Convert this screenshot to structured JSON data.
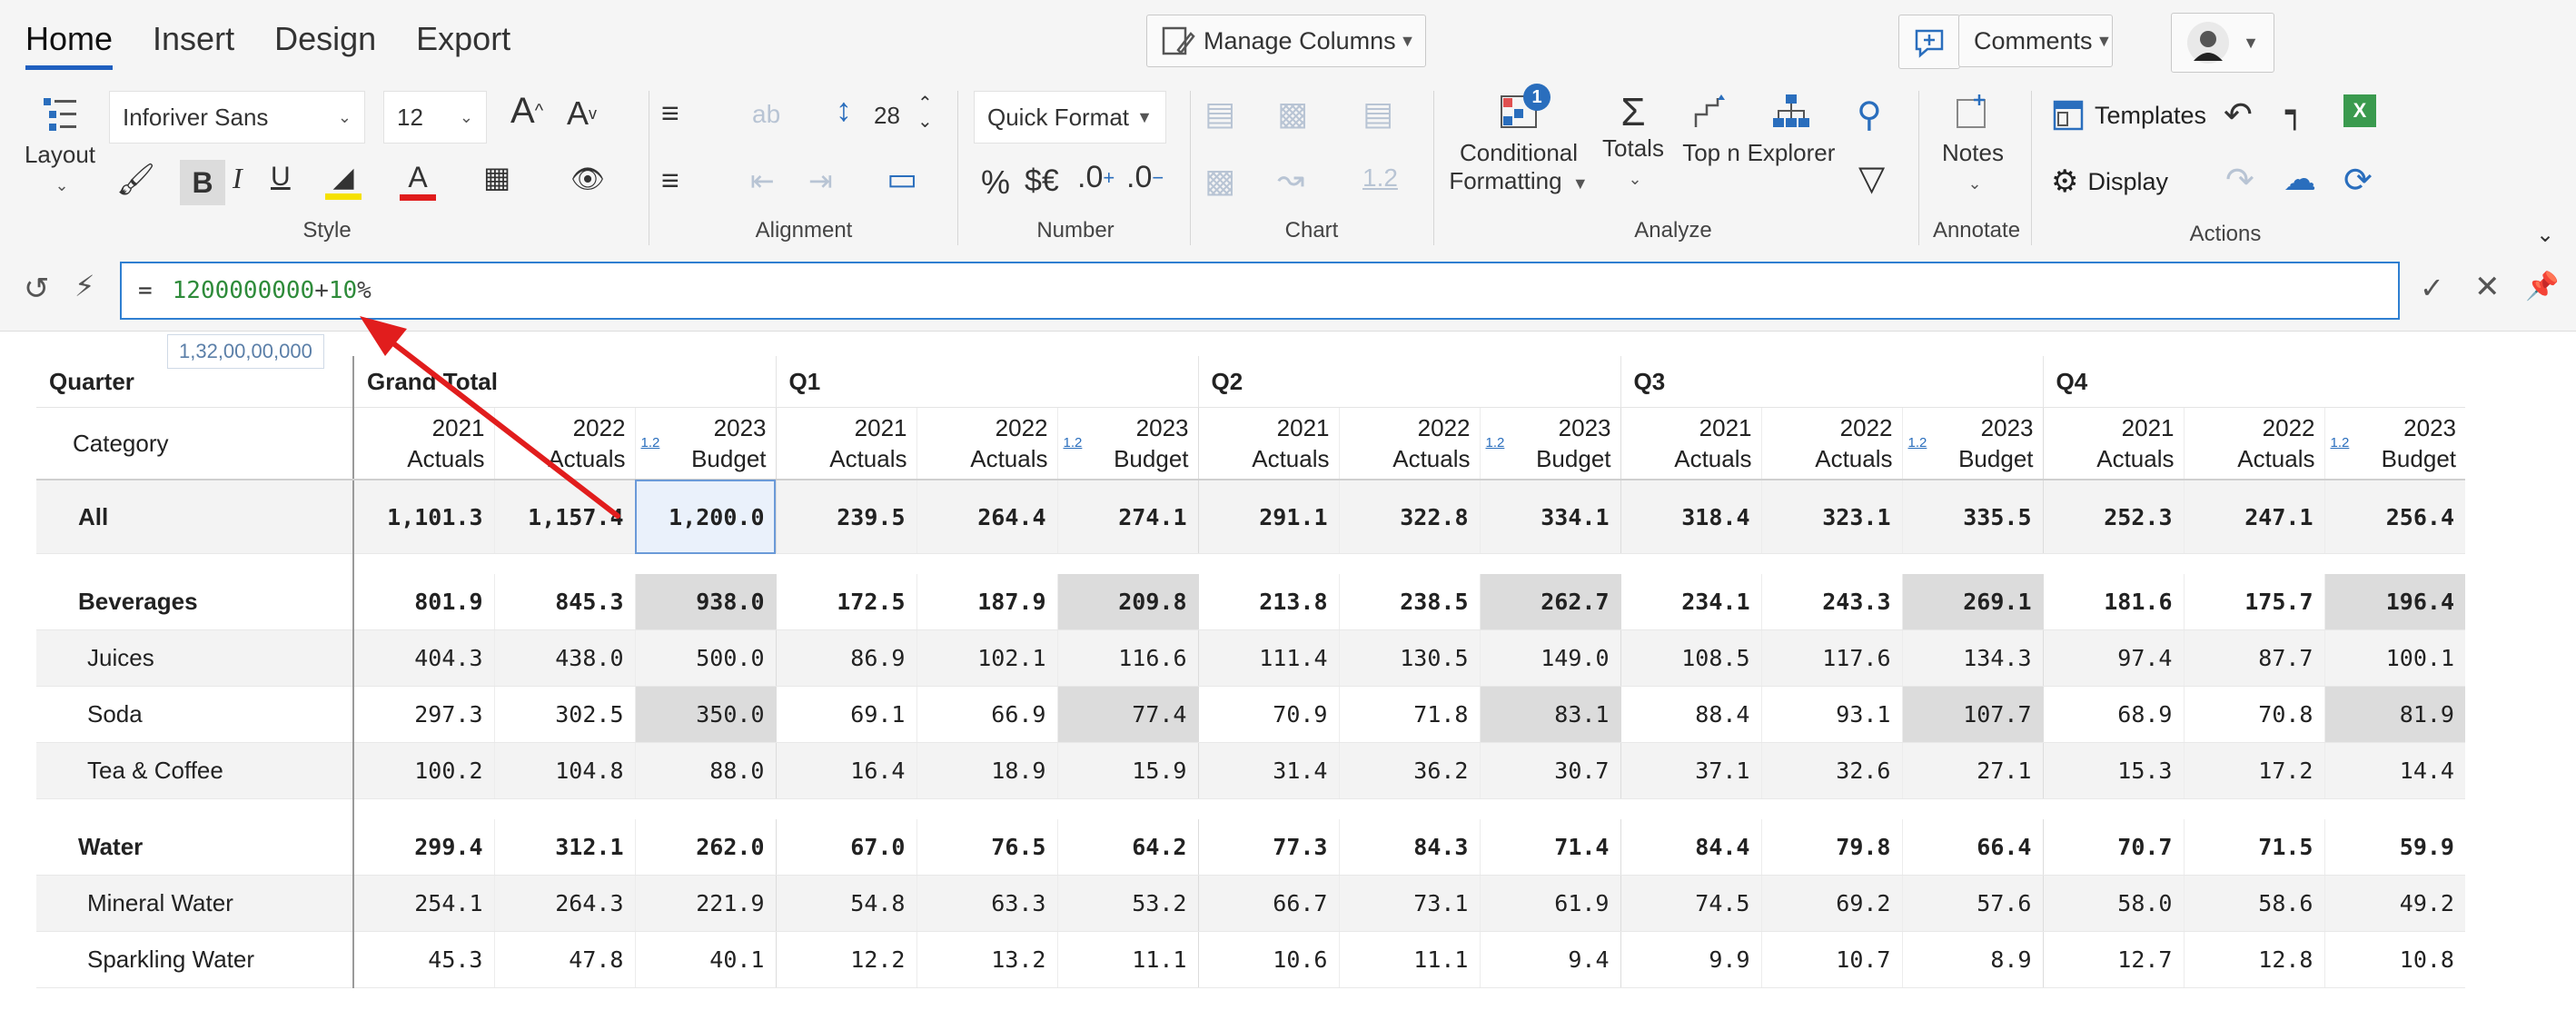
{
  "tabs": [
    "Home",
    "Insert",
    "Design",
    "Export"
  ],
  "top": {
    "manage_columns": "Manage Columns",
    "comments": "Comments"
  },
  "ribbon": {
    "layout_label": "Layout",
    "font_name": "Inforiver Sans",
    "font_size": "12",
    "row_height": "28",
    "quick_format": "Quick Format",
    "conditional_formatting": [
      "Conditional",
      "Formatting"
    ],
    "totals": "Totals",
    "topn": "Top n",
    "explorer": "Explorer",
    "notes": "Notes",
    "templates": "Templates",
    "display": "Display",
    "badge": "1",
    "chart_value_label": "1.2",
    "groups": [
      "Style",
      "Alignment",
      "Number",
      "Chart",
      "Analyze",
      "Annotate",
      "Actions"
    ]
  },
  "formula": {
    "equals": "=",
    "value1": "1200000000",
    "operator": "+",
    "value2": "10",
    "percent": "%",
    "tooltip": "1,32,00,00,000"
  },
  "grid": {
    "quarter_label": "Quarter",
    "category_label": "Category",
    "groups": [
      "Grand Total",
      "Q1",
      "Q2",
      "Q3",
      "Q4"
    ],
    "col_years": [
      "2021",
      "2022",
      "2023"
    ],
    "col_types": [
      "Actuals",
      "Actuals",
      "Budget"
    ],
    "variance_marker": "1.2",
    "rows": [
      {
        "label": "All",
        "values": [
          "1,101.3",
          "1,157.4",
          "1,200.0",
          "239.5",
          "264.4",
          "274.1",
          "291.1",
          "322.8",
          "334.1",
          "318.4",
          "323.1",
          "335.5",
          "252.3",
          "247.1",
          "256.4"
        ]
      },
      {
        "label": "Beverages",
        "values": [
          "801.9",
          "845.3",
          "938.0",
          "172.5",
          "187.9",
          "209.8",
          "213.8",
          "238.5",
          "262.7",
          "234.1",
          "243.3",
          "269.1",
          "181.6",
          "175.7",
          "196.4"
        ]
      },
      {
        "label": "Juices",
        "values": [
          "404.3",
          "438.0",
          "500.0",
          "86.9",
          "102.1",
          "116.6",
          "111.4",
          "130.5",
          "149.0",
          "108.5",
          "117.6",
          "134.3",
          "97.4",
          "87.7",
          "100.1"
        ]
      },
      {
        "label": "Soda",
        "values": [
          "297.3",
          "302.5",
          "350.0",
          "69.1",
          "66.9",
          "77.4",
          "70.9",
          "71.8",
          "83.1",
          "88.4",
          "93.1",
          "107.7",
          "68.9",
          "70.8",
          "81.9"
        ]
      },
      {
        "label": "Tea & Coffee",
        "values": [
          "100.2",
          "104.8",
          "88.0",
          "16.4",
          "18.9",
          "15.9",
          "31.4",
          "36.2",
          "30.7",
          "37.1",
          "32.6",
          "27.1",
          "15.3",
          "17.2",
          "14.4"
        ]
      },
      {
        "label": "Water",
        "values": [
          "299.4",
          "312.1",
          "262.0",
          "67.0",
          "76.5",
          "64.2",
          "77.3",
          "84.3",
          "71.4",
          "84.4",
          "79.8",
          "66.4",
          "70.7",
          "71.5",
          "59.9"
        ]
      },
      {
        "label": "Mineral Water",
        "values": [
          "254.1",
          "264.3",
          "221.9",
          "54.8",
          "63.3",
          "53.2",
          "66.7",
          "73.1",
          "61.9",
          "74.5",
          "69.2",
          "57.6",
          "58.0",
          "58.6",
          "49.2"
        ]
      },
      {
        "label": "Sparkling Water",
        "values": [
          "45.3",
          "47.8",
          "40.1",
          "12.2",
          "13.2",
          "11.1",
          "10.6",
          "11.1",
          "9.4",
          "9.9",
          "10.7",
          "8.9",
          "12.7",
          "12.8",
          "10.8"
        ]
      }
    ]
  }
}
